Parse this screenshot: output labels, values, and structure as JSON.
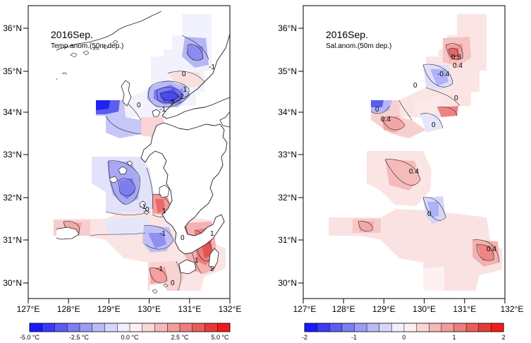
{
  "panels": [
    {
      "title": "2016Sep.",
      "subtitle": "Temp.anom.(50m dep.)",
      "colorbar": {
        "colors": [
          "#1a1aff",
          "#3a3af5",
          "#5c5cf0",
          "#7d7df2",
          "#9c9cf4",
          "#babaf7",
          "#d6d6fa",
          "#efeffd",
          "#fdf0f0",
          "#f9d6d6",
          "#f5b9b9",
          "#f29c9c",
          "#ee7d7d",
          "#ea5c5c",
          "#e63a3a",
          "#f51a1a"
        ],
        "labels": [
          "-5.0 °C",
          "-2.5 °C",
          "0.0 °C",
          "2.5 °C",
          "5.0 °C"
        ]
      },
      "contour_labels": [
        "0",
        "-1",
        "-2",
        "-3",
        "0",
        "-1",
        "-1",
        "0",
        "1",
        "-1",
        "0",
        "1",
        "2",
        "1",
        "-1",
        "-1",
        "0"
      ]
    },
    {
      "title": "2016Sep.",
      "subtitle": "Sal.anom.(50m dep.)",
      "colorbar": {
        "colors": [
          "#1a1aff",
          "#3a3af5",
          "#5c5cf0",
          "#7d7df2",
          "#9c9cf4",
          "#babaf7",
          "#d6d6fa",
          "#efeffd",
          "#fdf0f0",
          "#f9d6d6",
          "#f5b9b9",
          "#f29c9c",
          "#ee7d7d",
          "#ea5c5c",
          "#e63a3a",
          "#f51a1a"
        ],
        "labels": [
          "-2",
          "-1",
          "0",
          "1",
          "2"
        ]
      },
      "contour_labels": [
        "0.8",
        "0.4",
        "-0.4",
        "0",
        "0",
        "0",
        "0.4",
        "0",
        "0.4",
        "0",
        "0.4"
      ]
    }
  ],
  "axes": {
    "lon_ticks": [
      "127°E",
      "128°E",
      "129°E",
      "130°E",
      "131°E",
      "132°E"
    ],
    "lat_ticks": [
      "36°N",
      "35°N",
      "34°N",
      "33°N",
      "32°N",
      "31°N",
      "30°N"
    ]
  }
}
